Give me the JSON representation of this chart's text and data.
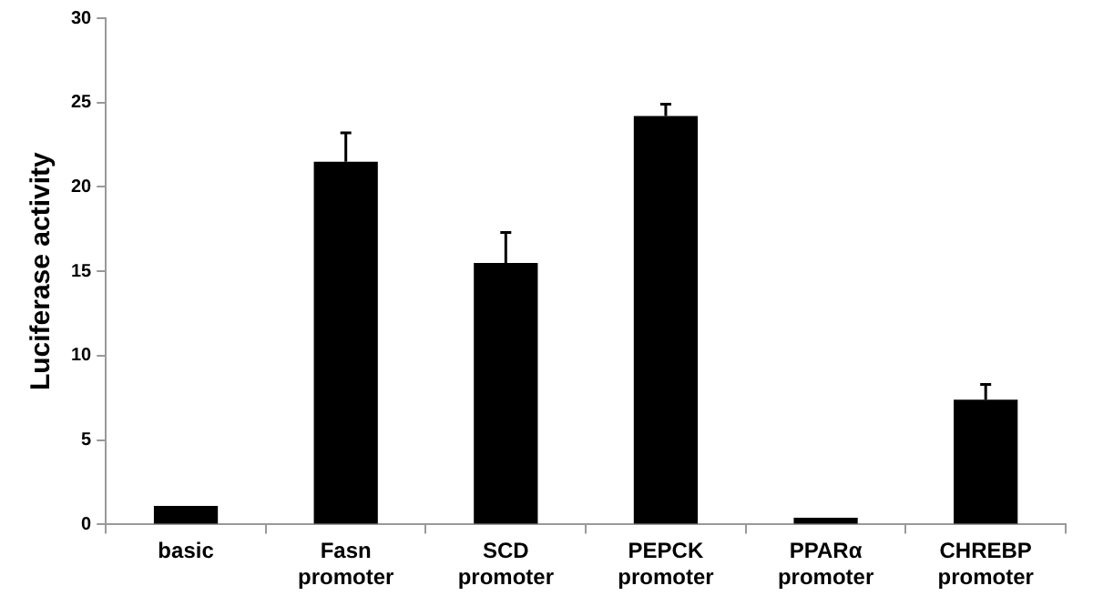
{
  "chart_data": {
    "type": "bar",
    "ylabel": "Luciferase activity",
    "categories": [
      "basic",
      "Fasn\npromoter",
      "SCD\npromoter",
      "PEPCK\npromoter",
      "PPARα\npromoter",
      "CHREBP\npromoter"
    ],
    "values": [
      1.1,
      21.5,
      15.5,
      24.2,
      0.4,
      7.4
    ],
    "errors": [
      null,
      [
        21.5,
        23.2
      ],
      [
        15.5,
        17.3
      ],
      [
        24.2,
        24.9
      ],
      null,
      [
        7.4,
        8.3
      ]
    ],
    "color": "#000000",
    "ylim": [
      0,
      30
    ],
    "yticks": [
      0,
      5,
      10,
      15,
      20,
      25,
      30
    ],
    "grid": false,
    "legend": false
  }
}
